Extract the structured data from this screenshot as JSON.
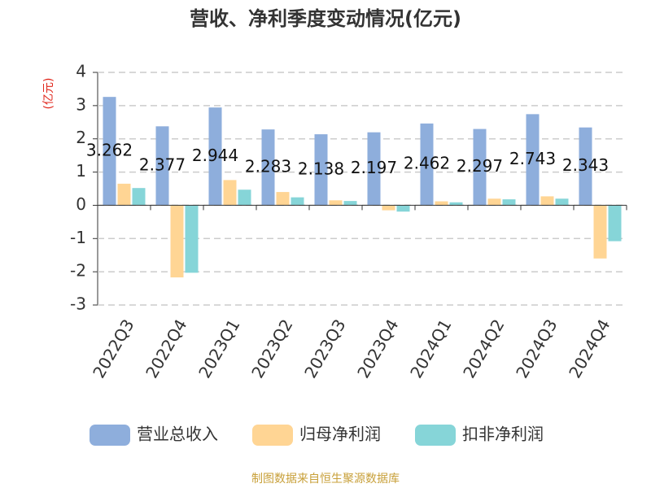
{
  "chart_data": {
    "type": "bar",
    "title": "营收、净利季度变动情况(亿元)",
    "y_unit_label": "(亿元)",
    "source": "制图数据来自恒生聚源数据库",
    "categories": [
      "2022Q3",
      "2022Q4",
      "2023Q1",
      "2023Q2",
      "2023Q3",
      "2023Q4",
      "2024Q1",
      "2024Q2",
      "2024Q3",
      "2024Q4"
    ],
    "series": [
      {
        "name": "营业总收入",
        "color": "#8eaedc",
        "values": [
          3.262,
          2.377,
          2.944,
          2.283,
          2.138,
          2.197,
          2.462,
          2.297,
          2.743,
          2.343
        ],
        "show_labels": true
      },
      {
        "name": "归母净利润",
        "color": "#ffd594",
        "values": [
          0.65,
          -2.17,
          0.76,
          0.4,
          0.15,
          -0.15,
          0.12,
          0.2,
          0.27,
          -1.6
        ]
      },
      {
        "name": "扣非净利润",
        "color": "#86d5d8",
        "values": [
          0.52,
          -2.03,
          0.47,
          0.24,
          0.13,
          -0.19,
          0.09,
          0.18,
          0.2,
          -1.08
        ]
      }
    ],
    "ylim": [
      -3,
      4
    ],
    "yticks": [
      -3,
      -2,
      -1,
      0,
      1,
      2,
      3,
      4
    ],
    "grid": true,
    "legend": "bottom"
  }
}
